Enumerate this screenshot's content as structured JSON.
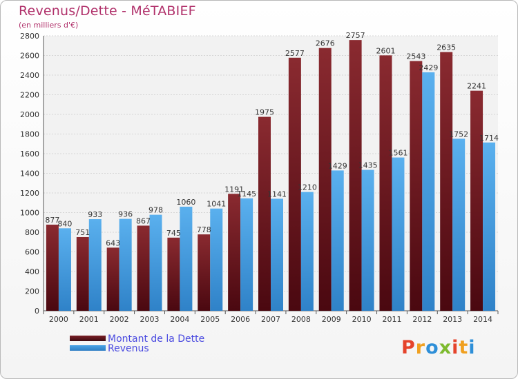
{
  "header": {
    "title": "Revenus/Dette - MéTABIEF",
    "subtitle": "(en milliers d'€)"
  },
  "chart_data": {
    "type": "bar",
    "categories": [
      "2000",
      "2001",
      "2002",
      "2003",
      "2004",
      "2005",
      "2006",
      "2007",
      "2008",
      "2009",
      "2010",
      "2011",
      "2012",
      "2013",
      "2014"
    ],
    "series": [
      {
        "name": "Montant de la Dette",
        "color": "#7a1f26",
        "values": [
          877,
          751,
          643,
          867,
          745,
          778,
          1191,
          1975,
          2577,
          2676,
          2757,
          2601,
          2543,
          2635,
          2241
        ]
      },
      {
        "name": "Revenus",
        "color": "#4aa3e6",
        "values": [
          840,
          933,
          936,
          978,
          1060,
          1041,
          1145,
          1141,
          1210,
          1429,
          1435,
          1561,
          2429,
          1752,
          1714
        ]
      }
    ],
    "ylim": [
      0,
      2800
    ],
    "yticks": [
      "0",
      "200",
      "400",
      "600",
      "800",
      "1000",
      "1200",
      "1400",
      "1600",
      "1800",
      "2000",
      "2200",
      "2400",
      "2600",
      "2800"
    ],
    "grid": true,
    "legend_placement": "bottom-left"
  },
  "legend": {
    "items": [
      {
        "label": "Montant de la Dette",
        "color": "#7a1f26"
      },
      {
        "label": "Revenus",
        "color": "#4aa3e6"
      }
    ]
  },
  "logo": {
    "letters": [
      "P",
      "r",
      "o",
      "x",
      "i",
      "t",
      "i"
    ],
    "colors": [
      "#e5432b",
      "#f0a020",
      "#2e8fd8",
      "#7dba2e",
      "#e5432b",
      "#f0a020",
      "#2e8fd8"
    ]
  }
}
